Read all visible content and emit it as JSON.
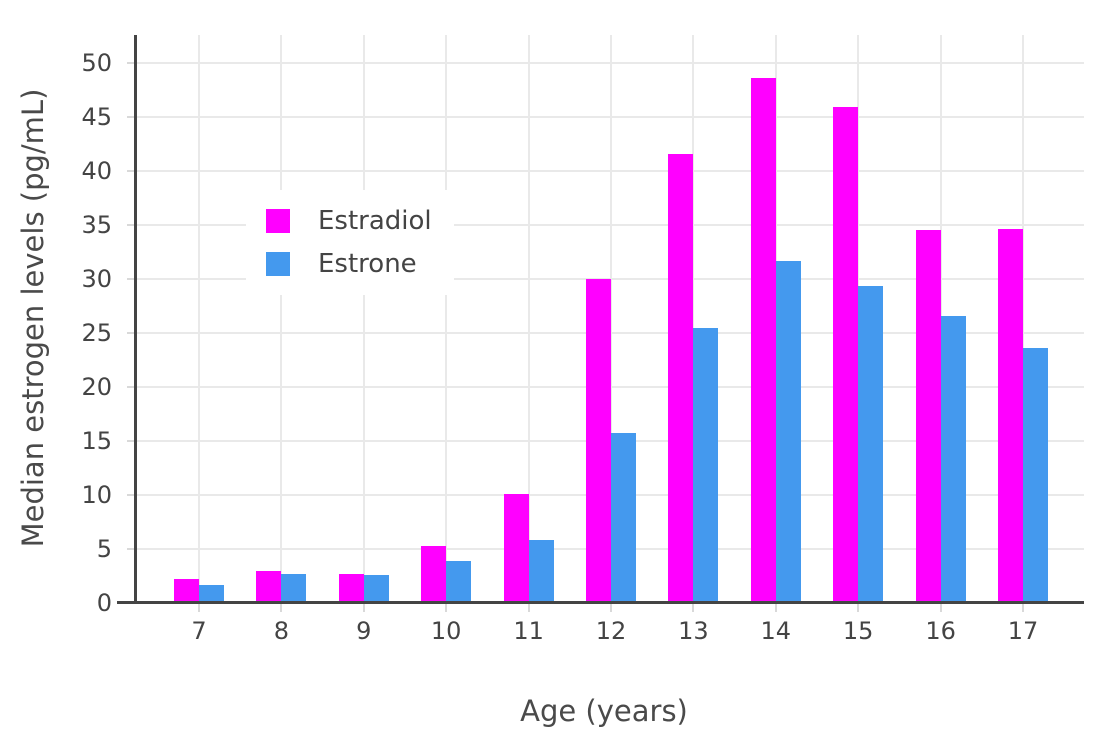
{
  "chart_data": {
    "type": "bar",
    "title": "",
    "xlabel": "Age (years)",
    "ylabel": "Median estrogen levels (pg/mL)",
    "categories": [
      "7",
      "8",
      "9",
      "10",
      "11",
      "12",
      "13",
      "14",
      "15",
      "16",
      "17"
    ],
    "series": [
      {
        "name": "Estradiol",
        "color": "#FF00FF",
        "values": [
          2.2,
          3.0,
          2.7,
          5.3,
          10.1,
          30.0,
          41.6,
          48.6,
          45.9,
          34.5,
          34.6
        ]
      },
      {
        "name": "Estrone",
        "color": "#4499EE",
        "values": [
          1.7,
          2.7,
          2.6,
          3.9,
          5.8,
          15.7,
          25.5,
          31.7,
          29.4,
          26.6,
          23.6
        ]
      }
    ],
    "ylim": [
      0,
      52.6
    ],
    "yticks": [
      0,
      5,
      10,
      15,
      20,
      25,
      30,
      35,
      40,
      45,
      50
    ],
    "grid": true,
    "legend_position": "inside-top-left"
  },
  "colors": {
    "background": "#ffffff",
    "axis_line": "#444444",
    "grid_line": "#e9e9e9",
    "tick_mark": "#d9d9d9",
    "text": "#444444"
  }
}
